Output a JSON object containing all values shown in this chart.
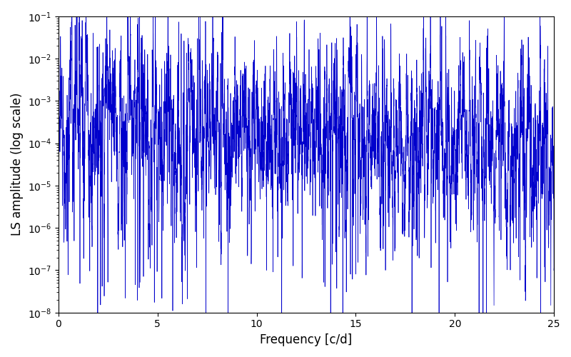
{
  "xlabel": "Frequency [c/d]",
  "ylabel": "LS amplitude (log scale)",
  "xlim": [
    0,
    25
  ],
  "ylim_log_min": -8,
  "ylim_log_max": -1,
  "line_color": "#0000cc",
  "line_width": 0.5,
  "figsize": [
    8.0,
    5.0
  ],
  "dpi": 100,
  "n_points": 6000,
  "freq_max": 25.0,
  "seed": 77,
  "background_color": "#ffffff",
  "ylabel_fontsize": 12,
  "xlabel_fontsize": 12,
  "tick_fontsize": 10
}
